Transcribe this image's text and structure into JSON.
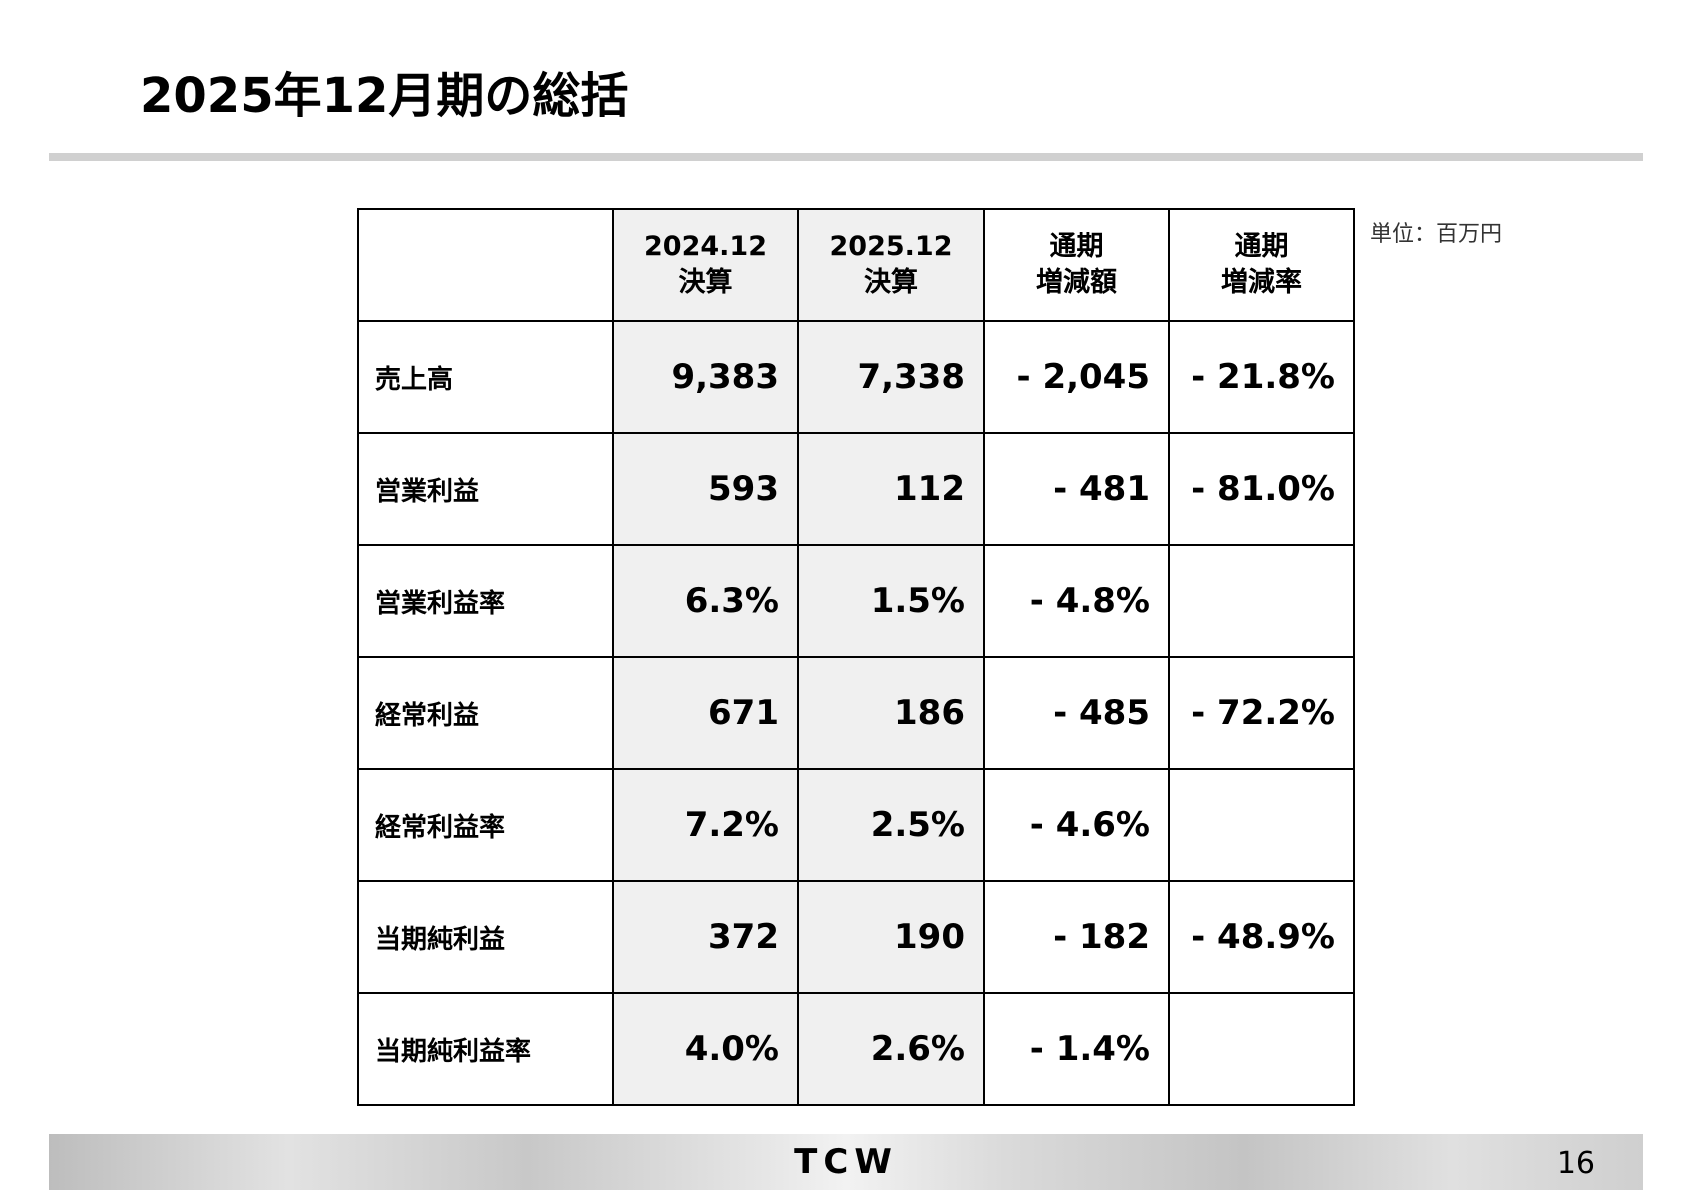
{
  "header": {
    "title": "2025年12月期の総括"
  },
  "unit": "単位：百万円",
  "table": {
    "columns": [
      [
        "2024.12",
        "決算"
      ],
      [
        "2025.12",
        "決算"
      ],
      [
        "通期",
        "増減額"
      ],
      [
        "通期",
        "増減率"
      ]
    ],
    "rows": [
      {
        "label": "売上高",
        "cells": [
          "9,383",
          "7,338",
          "- 2,045",
          "- 21.8%"
        ]
      },
      {
        "label": "営業利益",
        "cells": [
          "593",
          "112",
          "- 481",
          "- 81.0%"
        ]
      },
      {
        "label": "営業利益率",
        "cells": [
          "6.3%",
          "1.5%",
          "- 4.8%"
        ]
      },
      {
        "label": "経常利益",
        "cells": [
          "671",
          "186",
          "- 485",
          "- 72.2%"
        ]
      },
      {
        "label": "経常利益率",
        "cells": [
          "7.2%",
          "2.5%",
          "- 4.6%"
        ]
      },
      {
        "label": "当期純利益",
        "cells": [
          "372",
          "190",
          "- 182",
          "- 48.9%"
        ]
      },
      {
        "label": "当期純利益率",
        "cells": [
          "4.0%",
          "2.6%",
          "- 1.4%"
        ]
      }
    ]
  },
  "footer": {
    "logo": "TCW",
    "page": "16"
  }
}
